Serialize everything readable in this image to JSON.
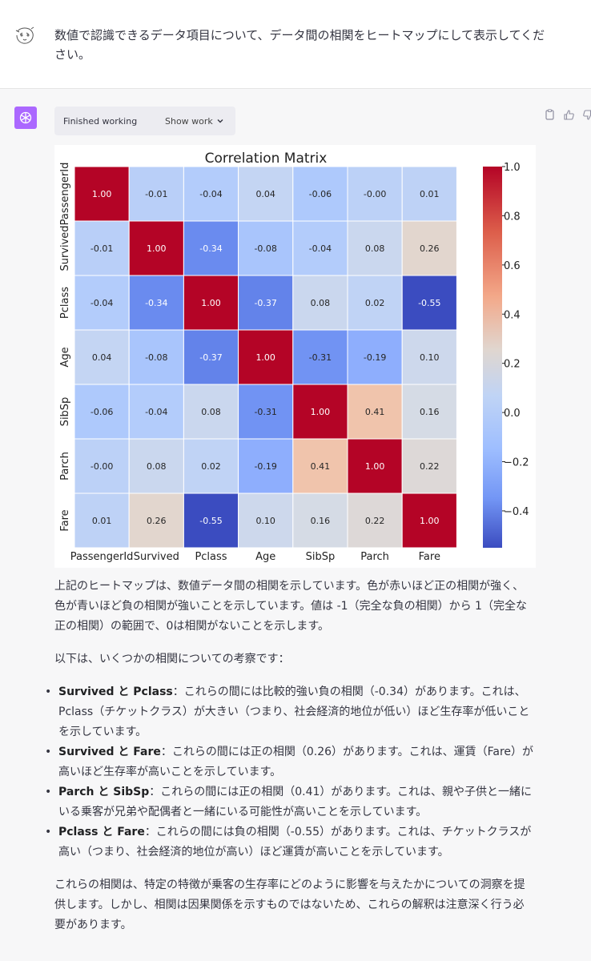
{
  "user": {
    "message": "数値で認識できるデータ項目について、データ間の相関をヒートマップにして表示してください。"
  },
  "work": {
    "status": "Finished working",
    "toggle_label": "Show work"
  },
  "chart_data": {
    "type": "heatmap",
    "title": "Correlation Matrix",
    "labels": [
      "PassengerId",
      "Survived",
      "Pclass",
      "Age",
      "SibSp",
      "Parch",
      "Fare"
    ],
    "matrix": [
      [
        1.0,
        -0.01,
        -0.04,
        0.04,
        -0.06,
        -0.0,
        0.01
      ],
      [
        -0.01,
        1.0,
        -0.34,
        -0.08,
        -0.04,
        0.08,
        0.26
      ],
      [
        -0.04,
        -0.34,
        1.0,
        -0.37,
        0.08,
        0.02,
        -0.55
      ],
      [
        0.04,
        -0.08,
        -0.37,
        1.0,
        -0.31,
        -0.19,
        0.1
      ],
      [
        -0.06,
        -0.04,
        0.08,
        -0.31,
        1.0,
        0.41,
        0.16
      ],
      [
        -0.0,
        0.08,
        0.02,
        -0.19,
        0.41,
        1.0,
        0.22
      ],
      [
        0.01,
        0.26,
        -0.55,
        0.1,
        0.16,
        0.22,
        1.0
      ]
    ],
    "cell_labels": [
      [
        "1.00",
        "-0.01",
        "-0.04",
        "0.04",
        "-0.06",
        "-0.00",
        "0.01"
      ],
      [
        "-0.01",
        "1.00",
        "-0.34",
        "-0.08",
        "-0.04",
        "0.08",
        "0.26"
      ],
      [
        "-0.04",
        "-0.34",
        "1.00",
        "-0.37",
        "0.08",
        "0.02",
        "-0.55"
      ],
      [
        "0.04",
        "-0.08",
        "-0.37",
        "1.00",
        "-0.31",
        "-0.19",
        "0.10"
      ],
      [
        "-0.06",
        "-0.04",
        "0.08",
        "-0.31",
        "1.00",
        "0.41",
        "0.16"
      ],
      [
        "-0.00",
        "0.08",
        "0.02",
        "-0.19",
        "0.41",
        "1.00",
        "0.22"
      ],
      [
        "0.01",
        "0.26",
        "-0.55",
        "0.10",
        "0.16",
        "0.22",
        "1.00"
      ]
    ],
    "colorbar": {
      "range": [
        -0.55,
        1.0
      ],
      "ticks": [
        1.0,
        0.8,
        0.6,
        0.4,
        0.2,
        0.0,
        -0.2,
        -0.4
      ],
      "tick_labels": [
        "1.0",
        "0.8",
        "0.6",
        "0.4",
        "0.2",
        "0.0",
        "−0.2",
        "−0.4"
      ],
      "colormap": "coolwarm"
    }
  },
  "response": {
    "intro": "上記のヒートマップは、数値データ間の相関を示しています。色が赤いほど正の相関が強く、色が青いほど負の相関が強いことを示しています。値は -1（完全な負の相関）から 1（完全な正の相関）の範囲で、0は相関がないことを示します。",
    "lead": "以下は、いくつかの相関についての考察です：",
    "bullets": [
      {
        "title": "Survived と Pclass",
        "text": "：これらの間には比較的強い負の相関（-0.34）があります。これは、Pclass（チケットクラス）が大きい（つまり、社会経済的地位が低い）ほど生存率が低いことを示しています。"
      },
      {
        "title": "Survived と Fare",
        "text": "：これらの間には正の相関（0.26）があります。これは、運賃（Fare）が高いほど生存率が高いことを示しています。"
      },
      {
        "title": "Parch と SibSp",
        "text": "：これらの間には正の相関（0.41）があります。これは、親や子供と一緒にいる乗客が兄弟や配偶者と一緒にいる可能性が高いことを示しています。"
      },
      {
        "title": "Pclass と Fare",
        "text": "：これらの間には負の相関（-0.55）があります。これは、チケットクラスが高い（つまり、社会経済的地位が高い）ほど運賃が高いことを示しています。"
      }
    ],
    "conclusion": "これらの相関は、特定の特徴が乗客の生存率にどのように影響を与えたかについての洞察を提供します。しかし、相関は因果関係を示すものではないため、これらの解釈は注意深く行う必要があります。"
  }
}
